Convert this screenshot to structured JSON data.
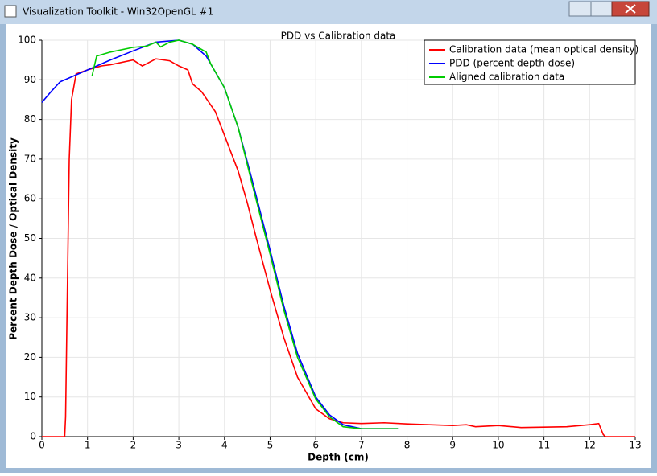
{
  "window": {
    "title": "Visualization Toolkit - Win32OpenGL #1"
  },
  "chart_data": {
    "type": "line",
    "title": "PDD vs Calibration data",
    "x_label": "Depth (cm)",
    "y_label": "Percent Depth Dose / Optical Density",
    "xlim": [
      0,
      13
    ],
    "ylim": [
      0,
      100
    ],
    "xticks": [
      0,
      1,
      2,
      3,
      4,
      5,
      6,
      7,
      8,
      9,
      10,
      11,
      12,
      13
    ],
    "yticks": [
      0,
      10,
      20,
      30,
      40,
      50,
      60,
      70,
      80,
      90,
      100
    ],
    "grid": true,
    "legend": "top-right",
    "series": [
      {
        "name": "Calibration data (mean optical density)",
        "color": "#ff0000",
        "x": [
          0,
          0.5,
          0.52,
          0.55,
          0.6,
          0.65,
          0.75,
          1.0,
          1.3,
          1.5,
          2.0,
          2.2,
          2.5,
          2.8,
          3.0,
          3.2,
          3.3,
          3.5,
          3.8,
          4.0,
          4.3,
          4.5,
          4.7,
          5.0,
          5.3,
          5.6,
          6.0,
          6.3,
          6.6,
          7.0,
          7.5,
          8.0,
          9.0,
          9.3,
          9.5,
          10.0,
          10.5,
          11.0,
          11.5,
          12.0,
          12.2,
          12.3,
          12.35,
          13
        ],
        "values": [
          0,
          0,
          5,
          30,
          70,
          85,
          91.5,
          92.5,
          93.5,
          93.8,
          95,
          93.5,
          95.3,
          94.8,
          93.5,
          92.5,
          89,
          87,
          82,
          76,
          67,
          59,
          50,
          37,
          25,
          15,
          7,
          4.5,
          3.5,
          3.3,
          3.5,
          3.2,
          2.8,
          3,
          2.5,
          2.8,
          2.3,
          2.4,
          2.5,
          3,
          3.3,
          0.5,
          0,
          0
        ]
      },
      {
        "name": "PDD (percent depth dose)",
        "color": "#0000ff",
        "x": [
          0,
          0.2,
          0.4,
          0.7,
          1.0,
          1.5,
          2.0,
          2.5,
          3.0,
          3.3,
          3.6,
          4.0,
          4.3,
          4.6,
          5.0,
          5.3,
          5.6,
          6.0,
          6.3,
          6.6,
          7.0,
          7.8
        ],
        "values": [
          84.3,
          87,
          89.5,
          91,
          92.5,
          95,
          97.3,
          99.5,
          100,
          99,
          96,
          88,
          78,
          65,
          47,
          33,
          21,
          10,
          5.5,
          3,
          2,
          2
        ]
      },
      {
        "name": "Aligned calibration data",
        "color": "#00cc00",
        "x": [
          1.1,
          1.2,
          1.5,
          2.0,
          2.3,
          2.5,
          2.6,
          2.8,
          3.0,
          3.3,
          3.6,
          3.7,
          4.0,
          4.3,
          4.6,
          5.0,
          5.3,
          5.6,
          6.0,
          6.3,
          6.6,
          7.0,
          7.8
        ],
        "values": [
          91,
          96,
          97,
          98.2,
          98.5,
          99.5,
          98.3,
          99.5,
          100,
          99,
          97,
          94,
          88,
          78,
          64,
          46,
          32,
          20,
          9.5,
          5,
          2.5,
          2,
          2
        ]
      }
    ]
  }
}
